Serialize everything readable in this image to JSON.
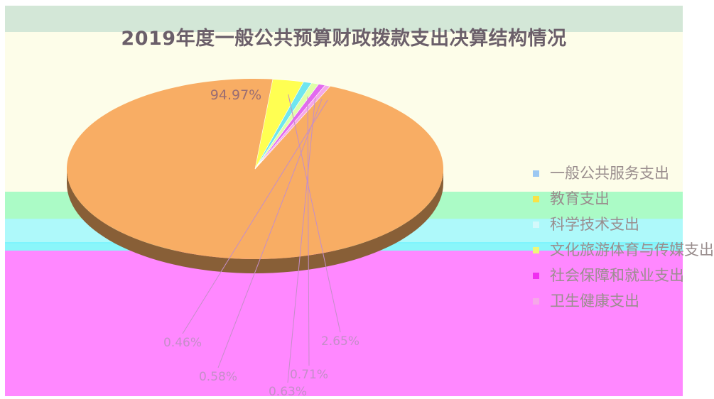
{
  "chart_data": {
    "type": "pie",
    "title": "2019年度一般公共预算财政拨款支出决算结构情况",
    "legend_position": "right",
    "series": [
      {
        "name": "一般公共服务支出",
        "value": 94.97,
        "color": "#f8ad64"
      },
      {
        "name": "教育支出",
        "value": 2.65,
        "color": "#ffff52"
      },
      {
        "name": "科学技术支出",
        "value": 0.71,
        "color": "#6fe6ef"
      },
      {
        "name": "文化旅游体育与传媒支出",
        "value": 0.63,
        "color": "#dfffa8"
      },
      {
        "name": "社会保障和就业支出",
        "value": 0.58,
        "color": "#e36bef"
      },
      {
        "name": "卫生健康支出",
        "value": 0.46,
        "color": "#f5a8e8"
      }
    ],
    "data_labels": [
      "94.97%",
      "2.65%",
      "0.71%",
      "0.63%",
      "0.58%",
      "0.46%"
    ]
  }
}
